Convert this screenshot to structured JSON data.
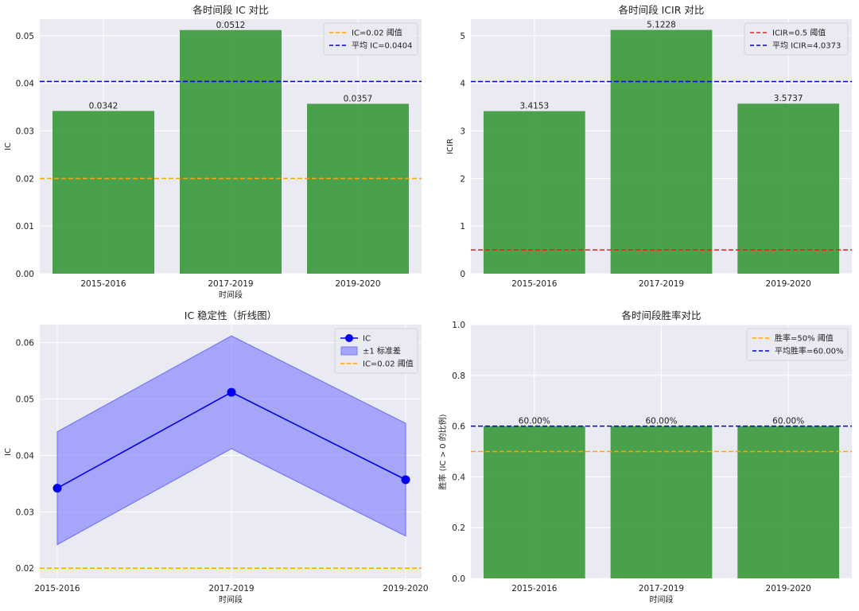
{
  "chart_data": [
    {
      "type": "bar",
      "title": "各时间段 IC 对比",
      "xlabel": "时间段",
      "ylabel": "IC",
      "categories": [
        "2015-2016",
        "2017-2019",
        "2019-2020"
      ],
      "values": [
        0.0342,
        0.0512,
        0.0357
      ],
      "value_labels": [
        "0.0342",
        "0.0512",
        "0.0357"
      ],
      "ylim": [
        0,
        0.0535
      ],
      "yticks": [
        0,
        0.01,
        0.02,
        0.03,
        0.04,
        0.05
      ],
      "ytick_labels": [
        "0.00",
        "0.01",
        "0.02",
        "0.03",
        "0.04",
        "0.05"
      ],
      "bar_color": "#3d9a3d",
      "hlines": [
        {
          "value": 0.02,
          "label": "IC=0.02 阈值",
          "color": "#ffa500"
        },
        {
          "value": 0.0404,
          "label": "平均 IC=0.0404",
          "color": "#0000cc"
        }
      ],
      "legend": "top-right"
    },
    {
      "type": "bar",
      "title": "各时间段 ICIR 对比",
      "xlabel": "",
      "ylabel": "ICIR",
      "categories": [
        "2015-2016",
        "2017-2019",
        "2019-2020"
      ],
      "values": [
        3.4153,
        5.1228,
        3.5737
      ],
      "value_labels": [
        "3.4153",
        "5.1228",
        "3.5737"
      ],
      "ylim": [
        0,
        5.35
      ],
      "yticks": [
        0,
        1,
        2,
        3,
        4,
        5
      ],
      "ytick_labels": [
        "0",
        "1",
        "2",
        "3",
        "4",
        "5"
      ],
      "bar_color": "#3d9a3d",
      "hlines": [
        {
          "value": 0.5,
          "label": "ICIR=0.5 阈值",
          "color": "#e8201a"
        },
        {
          "value": 4.0373,
          "label": "平均 ICIR=4.0373",
          "color": "#0000cc"
        }
      ],
      "legend": "top-right"
    },
    {
      "type": "line",
      "title": "IC 稳定性（折线图）",
      "xlabel": "时间段",
      "ylabel": "IC",
      "categories": [
        "2015-2016",
        "2017-2019",
        "2019-2020"
      ],
      "values": [
        0.0342,
        0.0512,
        0.0357
      ],
      "band": {
        "lower": [
          0.0242,
          0.0412,
          0.0257
        ],
        "upper": [
          0.0442,
          0.0612,
          0.0457
        ],
        "label": "±1 标准差",
        "color": "#6b6bff"
      },
      "series_label": "IC",
      "line_color": "#0000ee",
      "ylim": [
        0.0182,
        0.0632
      ],
      "yticks": [
        0.02,
        0.03,
        0.04,
        0.05,
        0.06
      ],
      "ytick_labels": [
        "0.02",
        "0.03",
        "0.04",
        "0.05",
        "0.06"
      ],
      "hlines": [
        {
          "value": 0.02,
          "label": "IC=0.02 阈值",
          "color": "#ffa500"
        }
      ],
      "legend": "top-right"
    },
    {
      "type": "bar",
      "title": "各时间段胜率对比",
      "xlabel": "时间段",
      "ylabel": "胜率 (IC > 0 的比例)",
      "categories": [
        "2015-2016",
        "2017-2019",
        "2019-2020"
      ],
      "values": [
        0.6,
        0.6,
        0.6
      ],
      "value_labels": [
        "60.00%",
        "60.00%",
        "60.00%"
      ],
      "ylim": [
        0,
        1.0
      ],
      "yticks": [
        0,
        0.2,
        0.4,
        0.6,
        0.8,
        1.0
      ],
      "ytick_labels": [
        "0.0",
        "0.2",
        "0.4",
        "0.6",
        "0.8",
        "1.0"
      ],
      "bar_color": "#3d9a3d",
      "hlines": [
        {
          "value": 0.5,
          "label": "胜率=50% 阈值",
          "color": "#ffa500"
        },
        {
          "value": 0.6,
          "label": "平均胜率=60.00%",
          "color": "#0000cc"
        }
      ],
      "legend": "top-right"
    }
  ]
}
